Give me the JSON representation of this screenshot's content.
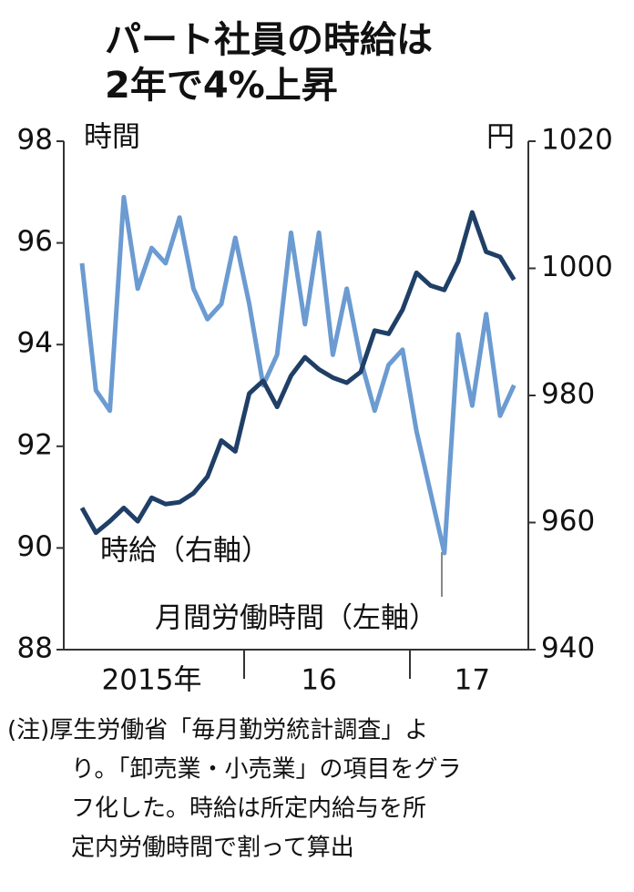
{
  "chart_data": {
    "type": "line",
    "title_lines": [
      "パート社員の時給は",
      "2年で4%上昇"
    ],
    "y_unit": "時間",
    "y2_unit": "円",
    "categories": [
      null,
      null,
      null,
      null,
      null,
      "2015年",
      null,
      null,
      null,
      null,
      null,
      null,
      null,
      null,
      null,
      null,
      null,
      "16",
      null,
      null,
      null,
      null,
      null,
      null,
      null,
      null,
      null,
      null,
      "17",
      null,
      null,
      null
    ],
    "ylim": [
      88,
      98
    ],
    "yticks": [
      88,
      90,
      92,
      94,
      96,
      98
    ],
    "y2lim": [
      940,
      1020
    ],
    "y2ticks": [
      940,
      960,
      980,
      1000,
      1020
    ],
    "series": [
      {
        "name": "月間労働時間（左軸）",
        "color": "#6b9bd1",
        "values": [
          95.6,
          93.1,
          92.7,
          96.9,
          95.1,
          95.9,
          95.6,
          96.5,
          95.1,
          94.5,
          94.8,
          96.1,
          94.8,
          93.2,
          93.8,
          96.2,
          94.4,
          96.2,
          93.8,
          95.1,
          93.7,
          92.7,
          93.6,
          93.9,
          92.3,
          91.1,
          89.9,
          94.2,
          92.8,
          94.6,
          92.6,
          93.2
        ]
      },
      {
        "name": "時給（右軸）",
        "color": "#1f3f66",
        "axis": "y2",
        "values": [
          962.3,
          958.4,
          960.2,
          962.3,
          960.2,
          963.9,
          962.9,
          963.2,
          964.6,
          967.2,
          972.9,
          971.2,
          980.3,
          982.3,
          978.2,
          983.1,
          986.0,
          984.1,
          982.8,
          982.0,
          983.7,
          990.2,
          989.7,
          993.5,
          999.3,
          997.3,
          996.6,
          1001.1,
          1008.8,
          1002.6,
          1001.8,
          998.2
        ]
      }
    ],
    "note_lines": [
      "(注)厚生労働省「毎月勤労統計調査」よ",
      "り。「卸売業・小売業」の項目をグラ",
      "フ化した。時給は所定内給与を所",
      "定内労働時間で割って算出"
    ]
  }
}
